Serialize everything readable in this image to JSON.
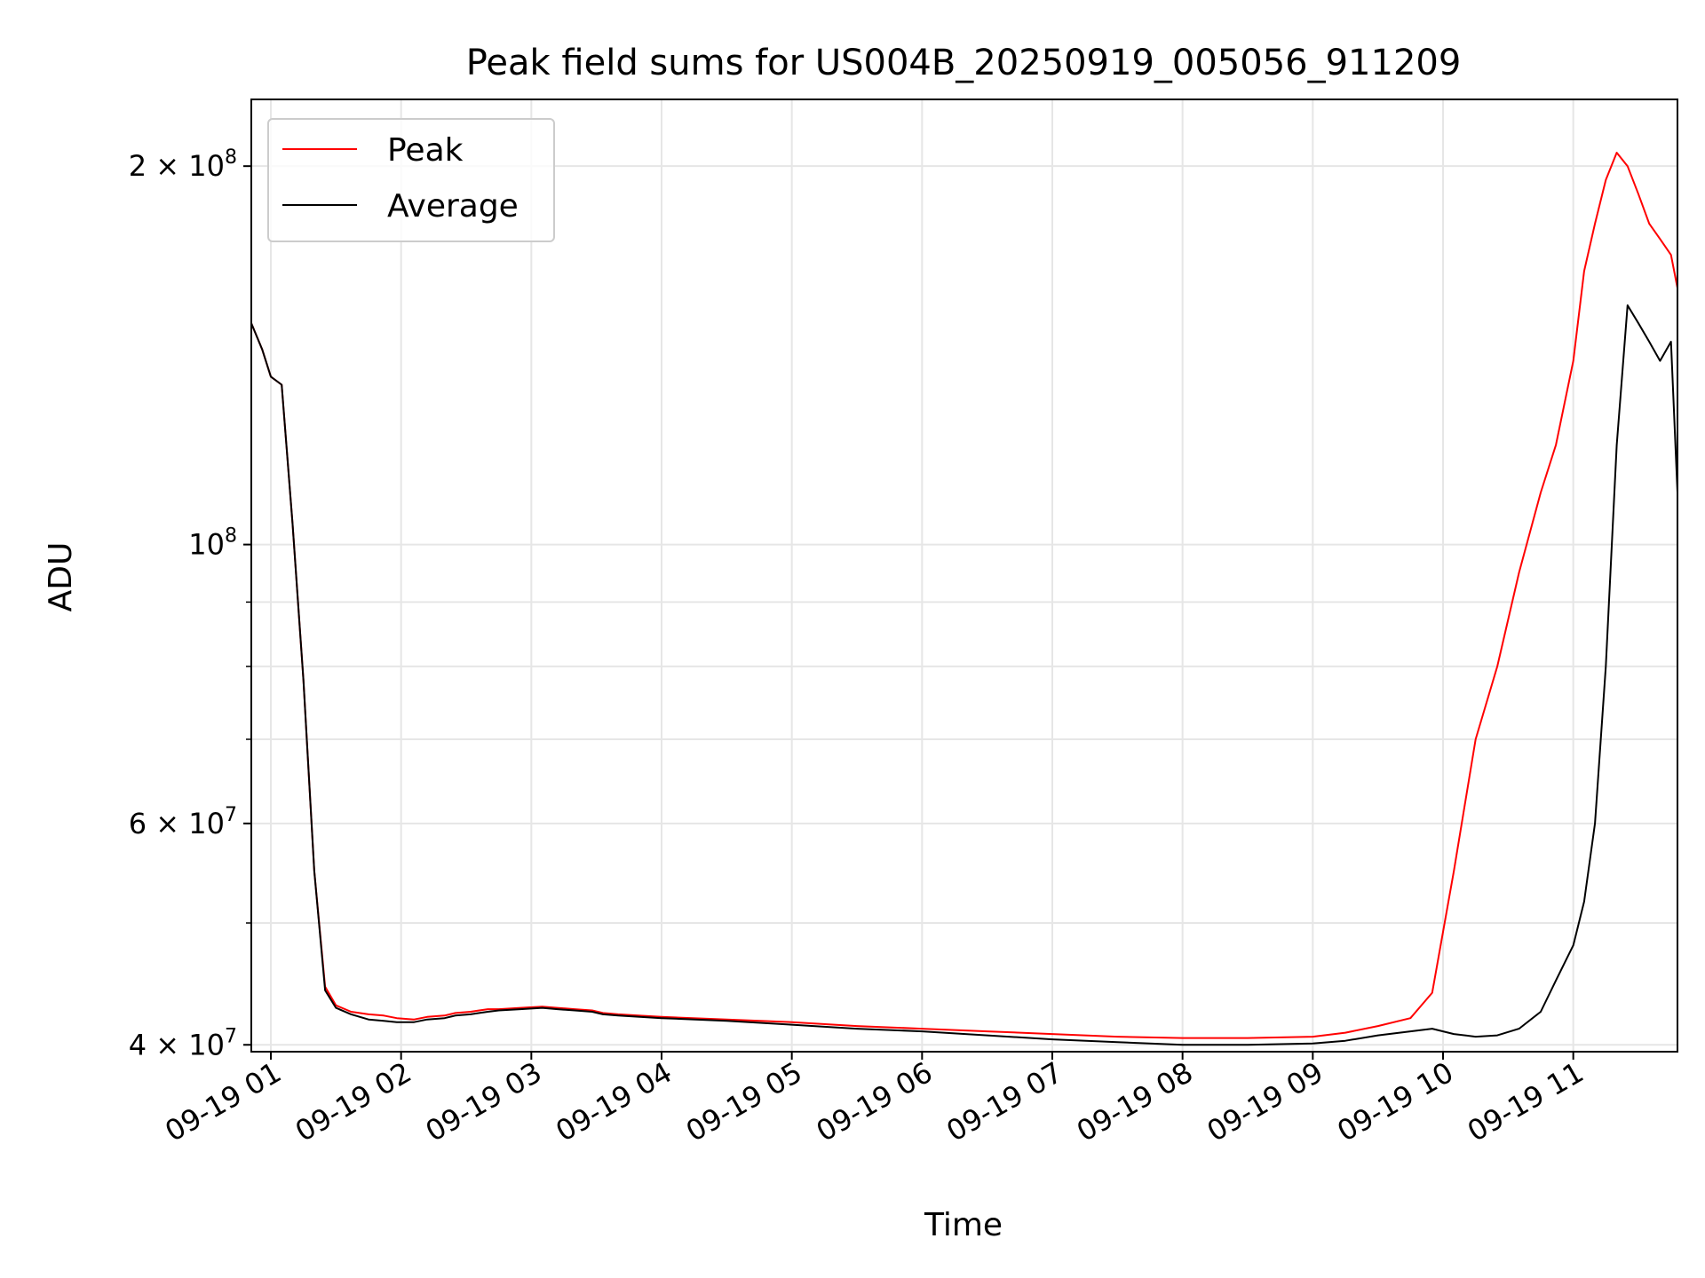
{
  "chart_data": {
    "type": "line",
    "title": "Peak field sums for US004B_20250919_005056_911209",
    "xlabel": "Time",
    "ylabel": "ADU",
    "xlim": [
      "2025-09-19 00:51",
      "2025-09-19 11:48"
    ],
    "ylim": [
      39500000,
      226000000
    ],
    "yscale": "log",
    "grid": true,
    "legend_position": "top-left",
    "x_ticks": [
      "09-19 01",
      "09-19 02",
      "09-19 03",
      "09-19 04",
      "09-19 05",
      "09-19 06",
      "09-19 07",
      "09-19 08",
      "09-19 09",
      "09-19 10",
      "09-19 11"
    ],
    "y_ticks": [
      {
        "value": 40000000,
        "mantissa": "4",
        "exponent": "7"
      },
      {
        "value": 60000000,
        "mantissa": "6",
        "exponent": "7"
      },
      {
        "value": 100000000,
        "mantissa": "",
        "exponent": "8"
      },
      {
        "value": 200000000,
        "mantissa": "2",
        "exponent": "8"
      }
    ],
    "y_base": "10",
    "series": [
      {
        "name": "Peak",
        "color": "#ff0000",
        "x": [
          "2025-09-19 00:51",
          "2025-09-19 00:56",
          "2025-09-19 01:00",
          "2025-09-19 01:05",
          "2025-09-19 01:10",
          "2025-09-19 01:15",
          "2025-09-19 01:20",
          "2025-09-19 01:25",
          "2025-09-19 01:30",
          "2025-09-19 01:37",
          "2025-09-19 01:45",
          "2025-09-19 01:52",
          "2025-09-19 01:58",
          "2025-09-19 02:06",
          "2025-09-19 02:12",
          "2025-09-19 02:20",
          "2025-09-19 02:25",
          "2025-09-19 02:32",
          "2025-09-19 02:36",
          "2025-09-19 02:40",
          "2025-09-19 02:45",
          "2025-09-19 02:55",
          "2025-09-19 03:05",
          "2025-09-19 03:12",
          "2025-09-19 03:20",
          "2025-09-19 03:28",
          "2025-09-19 03:33",
          "2025-09-19 03:40",
          "2025-09-19 04:00",
          "2025-09-19 04:30",
          "2025-09-19 05:00",
          "2025-09-19 05:30",
          "2025-09-19 06:00",
          "2025-09-19 06:30",
          "2025-09-19 07:00",
          "2025-09-19 07:30",
          "2025-09-19 08:00",
          "2025-09-19 08:30",
          "2025-09-19 09:00",
          "2025-09-19 09:15",
          "2025-09-19 09:30",
          "2025-09-19 09:45",
          "2025-09-19 09:55",
          "2025-09-19 10:05",
          "2025-09-19 10:15",
          "2025-09-19 10:25",
          "2025-09-19 10:35",
          "2025-09-19 10:45",
          "2025-09-19 10:52",
          "2025-09-19 11:00",
          "2025-09-19 11:05",
          "2025-09-19 11:10",
          "2025-09-19 11:15",
          "2025-09-19 11:20",
          "2025-09-19 11:25",
          "2025-09-19 11:30",
          "2025-09-19 11:35",
          "2025-09-19 11:40",
          "2025-09-19 11:45",
          "2025-09-19 11:48"
        ],
        "values": [
          150000000,
          143000000,
          136000000,
          134000000,
          104000000,
          78000000,
          55000000,
          44500000,
          43000000,
          42500000,
          42300000,
          42200000,
          42000000,
          41900000,
          42100000,
          42200000,
          42400000,
          42500000,
          42600000,
          42700000,
          42700000,
          42800000,
          42900000,
          42800000,
          42700000,
          42600000,
          42400000,
          42300000,
          42100000,
          41900000,
          41700000,
          41400000,
          41200000,
          41000000,
          40800000,
          40600000,
          40500000,
          40500000,
          40600000,
          40900000,
          41400000,
          42000000,
          44000000,
          55000000,
          70000000,
          80000000,
          95000000,
          110000000,
          120000000,
          140000000,
          165000000,
          180000000,
          195000000,
          205000000,
          200000000,
          190000000,
          180000000,
          175000000,
          170000000,
          160000000
        ]
      },
      {
        "name": "Average",
        "color": "#000000",
        "x": [
          "2025-09-19 00:51",
          "2025-09-19 00:56",
          "2025-09-19 01:00",
          "2025-09-19 01:05",
          "2025-09-19 01:10",
          "2025-09-19 01:15",
          "2025-09-19 01:20",
          "2025-09-19 01:25",
          "2025-09-19 01:30",
          "2025-09-19 01:37",
          "2025-09-19 01:45",
          "2025-09-19 01:52",
          "2025-09-19 01:58",
          "2025-09-19 02:06",
          "2025-09-19 02:12",
          "2025-09-19 02:20",
          "2025-09-19 02:25",
          "2025-09-19 02:32",
          "2025-09-19 02:36",
          "2025-09-19 02:40",
          "2025-09-19 02:45",
          "2025-09-19 02:55",
          "2025-09-19 03:05",
          "2025-09-19 03:12",
          "2025-09-19 03:20",
          "2025-09-19 03:28",
          "2025-09-19 03:33",
          "2025-09-19 03:40",
          "2025-09-19 04:00",
          "2025-09-19 04:30",
          "2025-09-19 05:00",
          "2025-09-19 05:30",
          "2025-09-19 06:00",
          "2025-09-19 06:30",
          "2025-09-19 07:00",
          "2025-09-19 07:30",
          "2025-09-19 08:00",
          "2025-09-19 08:30",
          "2025-09-19 09:00",
          "2025-09-19 09:15",
          "2025-09-19 09:30",
          "2025-09-19 09:45",
          "2025-09-19 09:55",
          "2025-09-19 10:05",
          "2025-09-19 10:15",
          "2025-09-19 10:25",
          "2025-09-19 10:35",
          "2025-09-19 10:45",
          "2025-09-19 10:52",
          "2025-09-19 11:00",
          "2025-09-19 11:05",
          "2025-09-19 11:10",
          "2025-09-19 11:15",
          "2025-09-19 11:20",
          "2025-09-19 11:25",
          "2025-09-19 11:30",
          "2025-09-19 11:35",
          "2025-09-19 11:40",
          "2025-09-19 11:45",
          "2025-09-19 11:48"
        ],
        "values": [
          150000000,
          143000000,
          136000000,
          134000000,
          104000000,
          78000000,
          55000000,
          44200000,
          42800000,
          42300000,
          41900000,
          41800000,
          41700000,
          41700000,
          41900000,
          42000000,
          42200000,
          42300000,
          42400000,
          42500000,
          42600000,
          42700000,
          42800000,
          42700000,
          42600000,
          42500000,
          42300000,
          42200000,
          42000000,
          41800000,
          41500000,
          41200000,
          41000000,
          40700000,
          40400000,
          40200000,
          40000000,
          40000000,
          40100000,
          40300000,
          40700000,
          41000000,
          41200000,
          40800000,
          40600000,
          40700000,
          41200000,
          42500000,
          45000000,
          48000000,
          52000000,
          60000000,
          80000000,
          120000000,
          155000000,
          150000000,
          145000000,
          140000000,
          145000000,
          110000000
        ]
      }
    ]
  }
}
